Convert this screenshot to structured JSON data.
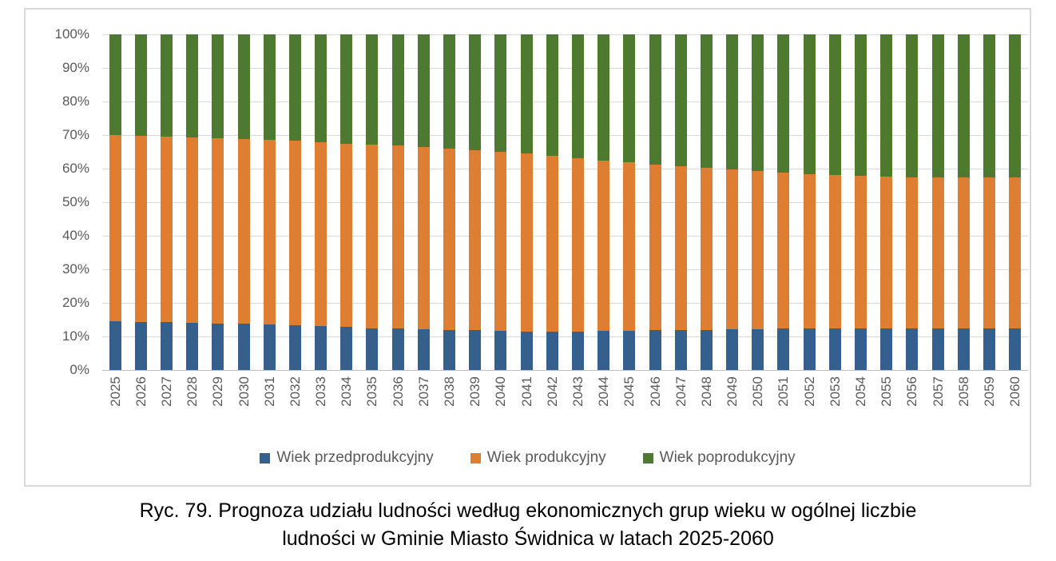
{
  "colors": {
    "pre_production": "#355f8c",
    "production": "#dd7e33",
    "post_production": "#4d7a2e",
    "gridline": "#d9d9d9",
    "axis_line": "#bfbfbf",
    "axis_label": "#595959",
    "frame_border": "#d9d9d9"
  },
  "legend": {
    "items": [
      {
        "label": "Wiek przedprodukcyjny",
        "color": "#355f8c"
      },
      {
        "label": "Wiek produkcyjny",
        "color": "#dd7e33"
      },
      {
        "label": "Wiek poprodukcyjny",
        "color": "#4d7a2e"
      }
    ]
  },
  "caption": {
    "lines": [
      "Ryc. 79. Prognoza udziału ludności według ekonomicznych grup wieku w ogólnej liczbie",
      "ludności w Gminie Miasto Świdnica w latach 2025-2060"
    ]
  },
  "chart_data": {
    "type": "bar",
    "subtype": "stacked-100",
    "title": "",
    "xlabel": "",
    "ylabel": "",
    "ylim": [
      0,
      100
    ],
    "grid": true,
    "legend_position": "bottom",
    "y_ticks": [
      "0%",
      "10%",
      "20%",
      "30%",
      "40%",
      "50%",
      "60%",
      "70%",
      "80%",
      "90%",
      "100%"
    ],
    "categories": [
      "2025",
      "2026",
      "2027",
      "2028",
      "2029",
      "2030",
      "2031",
      "2032",
      "2033",
      "2034",
      "2035",
      "2036",
      "2037",
      "2038",
      "2039",
      "2040",
      "2041",
      "2042",
      "2043",
      "2044",
      "2045",
      "2046",
      "2047",
      "2048",
      "2049",
      "2050",
      "2051",
      "2052",
      "2053",
      "2054",
      "2055",
      "2056",
      "2057",
      "2058",
      "2059",
      "2060"
    ],
    "series": [
      {
        "name": "Wiek przedprodukcyjny",
        "color": "#355f8c",
        "values": [
          14.5,
          14.4,
          14.2,
          14.1,
          13.9,
          13.7,
          13.5,
          13.3,
          13.0,
          12.8,
          12.5,
          12.3,
          12.1,
          12.0,
          11.8,
          11.6,
          11.5,
          11.5,
          11.5,
          11.6,
          11.7,
          11.8,
          11.9,
          12.0,
          12.1,
          12.2,
          12.3,
          12.3,
          12.4,
          12.5,
          12.5,
          12.5,
          12.4,
          12.4,
          12.3,
          12.3
        ]
      },
      {
        "name": "Wiek produkcyjny",
        "color": "#dd7e33",
        "values": [
          55.5,
          55.4,
          55.3,
          55.2,
          55.2,
          55.1,
          55.1,
          55.0,
          54.8,
          54.6,
          54.6,
          54.5,
          54.3,
          53.9,
          53.7,
          53.4,
          53.0,
          52.3,
          51.6,
          50.9,
          50.3,
          49.5,
          48.8,
          48.2,
          47.6,
          47.1,
          46.6,
          46.1,
          45.7,
          45.3,
          45.2,
          45.0,
          45.0,
          45.1,
          45.0,
          45.1
        ]
      },
      {
        "name": "Wiek poprodukcyjny",
        "color": "#4d7a2e",
        "values": [
          30.0,
          30.2,
          30.5,
          30.7,
          30.9,
          31.2,
          31.4,
          31.7,
          32.2,
          32.6,
          32.9,
          33.2,
          33.6,
          34.1,
          34.5,
          35.0,
          35.5,
          36.2,
          36.9,
          37.5,
          38.0,
          38.7,
          39.3,
          39.8,
          40.3,
          40.7,
          41.1,
          41.6,
          41.9,
          42.2,
          42.3,
          42.5,
          42.6,
          42.5,
          42.7,
          42.6
        ]
      }
    ]
  }
}
